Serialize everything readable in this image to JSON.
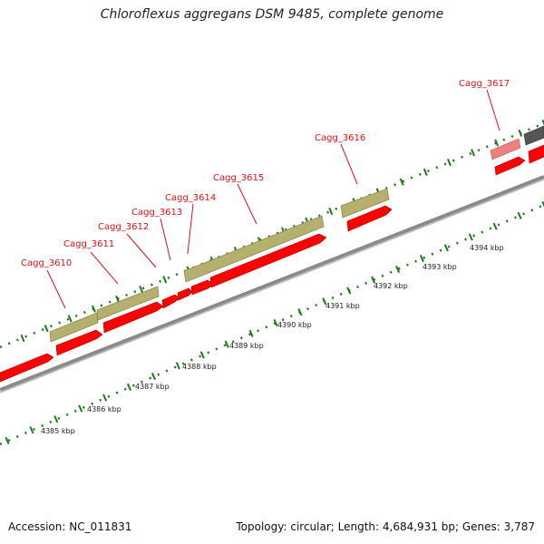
{
  "title": "Chloroflexus aggregans DSM 9485, complete genome",
  "footer": {
    "accession": "Accession: NC_011831",
    "summary": "Topology: circular; Length: 4,684,931 bp; Genes: 3,787"
  },
  "colors": {
    "cds": "#ff0000",
    "gene": "#b5b06e",
    "backbone": "#7f7f7f",
    "ticks": "#1a7a1a",
    "label": "#d11111",
    "pseudo": "#f07f7f",
    "other": "#555555"
  },
  "genes": [
    {
      "name": "Cagg_3610",
      "start_kbp": 4388.05,
      "end_kbp": 4388.3
    },
    {
      "name": "Cagg_3611",
      "start_kbp": 4388.35,
      "end_kbp": 4389.05
    },
    {
      "name": "Cagg_3612",
      "start_kbp": 4389.1,
      "end_kbp": 4389.3
    },
    {
      "name": "Cagg_3613",
      "start_kbp": 4389.35,
      "end_kbp": 4389.45
    },
    {
      "name": "Cagg_3614",
      "start_kbp": 4389.5,
      "end_kbp": 4389.8
    },
    {
      "name": "Cagg_3615",
      "start_kbp": 4389.85,
      "end_kbp": 4392.7
    },
    {
      "name": "Cagg_3616",
      "start_kbp": 4392.95,
      "end_kbp": 4393.55
    },
    {
      "name": "Cagg_3617",
      "start_kbp": 4394.85,
      "end_kbp": 4395.25
    }
  ],
  "kbp_labels": [
    "4385 kbp",
    "4386 kbp",
    "4387 kbp",
    "4388 kbp",
    "4389 kbp",
    "4390 kbp",
    "4391 kbp",
    "4392 kbp",
    "4393 kbp",
    "4394 kbp"
  ]
}
